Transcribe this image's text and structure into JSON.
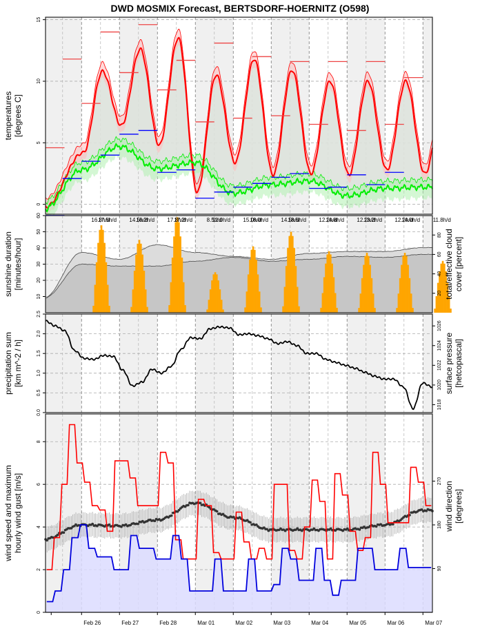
{
  "title": "DWD MOSMIX Forecast, BERTSDORF-HOERNITZ (O598)",
  "x_axis": {
    "day_labels": [
      "Feb 26",
      "Feb 27",
      "Feb 28",
      "Mar 01",
      "Mar 02",
      "Mar 03",
      "Mar 04",
      "Mar 05",
      "Mar 06",
      "Mar 07"
    ],
    "range_days": [
      -0.95,
      9.25
    ]
  },
  "colors": {
    "temp_max": "#ff0000",
    "temp_dew": "#00ee00",
    "daily_min_bar": "#0000ff",
    "sunshine": "#ffa500",
    "cloud": "#555555",
    "pressure": "#000000",
    "gust": "#ff0000",
    "wind_speed": "#0000dd",
    "wind_fill": "#dcdcff",
    "shade": "#f0f0f0"
  },
  "chart_data": [
    {
      "type": "line",
      "panel": "temperature",
      "ylabel": "temperatures\n[degrees C]",
      "ylabel_lines": [
        "temperatures",
        "[degrees C]"
      ],
      "ylim": [
        -0.8,
        15.2
      ],
      "yticks": [
        0,
        5,
        10,
        15
      ],
      "grid": true,
      "series": [
        {
          "name": "temperature",
          "peaks": [
            10.8,
            12.6,
            13.5,
            10.5,
            11.8,
            10.9,
            10.0,
            10.0,
            10.0,
            8.5
          ],
          "troughs": [
            -0.2,
            4.2,
            6.4,
            4.8,
            1.0,
            3.4,
            2.4,
            2.5,
            2.4,
            2.8,
            2.5
          ]
        },
        {
          "name": "dew point",
          "values_at_days": [
            -0.4,
            2.8,
            4.7,
            2.9,
            3.4,
            0.9,
            1.6,
            1.9,
            0.7,
            1.3,
            1.4
          ]
        }
      ],
      "daily_max_bars": [
        4.6,
        11.8,
        8.2,
        14.0,
        10.7,
        14.6,
        9.3,
        11.7,
        6.7,
        13.1,
        7.0,
        12.0,
        7.2,
        11.6,
        6.5,
        11.6,
        6.0,
        11.6,
        6.5,
        10.3
      ],
      "daily_min_bars": [
        -0.9,
        2.1,
        3.5,
        4.0,
        5.7,
        6.0,
        2.6,
        2.8,
        0.5,
        1.0,
        1.4,
        1.7,
        2.2,
        2.5,
        1.3,
        1.4,
        2.4,
        1.6,
        2.6
      ]
    },
    {
      "type": "bar",
      "panel": "sunshine",
      "ylabel_lines": [
        "sunshine duration",
        "[minutes/hour]"
      ],
      "y2label_lines": [
        "total/effective cloud",
        "cover [percent]"
      ],
      "ylim": [
        0,
        60
      ],
      "yticks": [
        10,
        20,
        30,
        40,
        50,
        60
      ],
      "y2ticks": [
        20,
        40,
        60,
        80
      ],
      "daily_sun_peak_min_per_hour": [
        54,
        45,
        59,
        25,
        41,
        50,
        38,
        37,
        37,
        32
      ],
      "daily_sunshine_labels": [
        "16.8h/d",
        "14.5h/d",
        "17.8h/d",
        "8.5h/d",
        "15.0h/d",
        "14.5h/d",
        "12.2h/d",
        "12.2h/d",
        "12.2h/d",
        "11.8h/d"
      ],
      "overlap_labels": [
        "17.5h/d",
        "16.2h/d",
        "17.2h/d",
        "12.0h/d",
        "18.0h/d",
        "18.5h/d",
        "14.8h/d",
        "13.2h/d",
        "14.0h/d"
      ],
      "cloud_total_percent_at_days": [
        15,
        62,
        55,
        70,
        62,
        58,
        55,
        61,
        63,
        63,
        67
      ],
      "cloud_effective_percent_at_days": [
        15,
        50,
        48,
        48,
        53,
        57,
        53,
        55,
        58,
        57,
        60
      ],
      "grid": true
    },
    {
      "type": "line",
      "panel": "pressure",
      "ylabel_lines": [
        "precipitation sum",
        "[km m^-2 / h]"
      ],
      "y2label_lines": [
        "surface pressure",
        "[hetcopascal]"
      ],
      "ylim": [
        0,
        2.5
      ],
      "yticks": [
        0.0,
        0.5,
        1.0,
        1.5,
        2.0,
        2.5
      ],
      "y2lim": [
        1017.2,
        1027.2
      ],
      "y2ticks": [
        1018,
        1020,
        1022,
        1024,
        1026
      ],
      "pressure_hpa": [
        1026.5,
        1026,
        1025.5,
        1023.5,
        1022.7,
        1022.6,
        1023.0,
        1022.9,
        1021.5,
        1019.9,
        1020.3,
        1021.6,
        1021.2,
        1021.9,
        1023.6,
        1024.8,
        1024.7,
        1025.7,
        1025.9,
        1025.8,
        1025.1,
        1025.2,
        1025.0,
        1024.7,
        1024.2,
        1024.4,
        1024.0,
        1023.2,
        1023.2,
        1022.6,
        1022.3,
        1022.0,
        1021.7,
        1021.3,
        1020.9,
        1020.6,
        1020.6,
        1019.8,
        1017.6,
        1020.2,
        1019.8
      ],
      "grid": true
    },
    {
      "type": "line",
      "panel": "wind",
      "ylabel_lines": [
        "wind speed and maximum",
        "hourly wind gust [m/s]"
      ],
      "y2label_lines": [
        "wind direction",
        "[degrees]"
      ],
      "ylim": [
        0,
        9.3
      ],
      "yticks": [
        0,
        2,
        4,
        6,
        8
      ],
      "y2ticks": [
        90,
        180,
        270
      ],
      "series": [
        {
          "name": "max hourly gust",
          "values": [
            2.0,
            3.5,
            6.0,
            8.8,
            7.0,
            6.1,
            5.0,
            4.8,
            3.8,
            7.1,
            7.1,
            6.3,
            5.0,
            5.0,
            5.0,
            7.5,
            7.0,
            3.4,
            2.5,
            2.5,
            5.3,
            5.0,
            2.8,
            2.5,
            2.5,
            4.7,
            3.3,
            2.5,
            3.0,
            2.5,
            6.0,
            6.0,
            2.9,
            2.5,
            4.0,
            6.2,
            5.2,
            2.5,
            6.5,
            5.5,
            3.8,
            2.9,
            3.5,
            7.5,
            6.0,
            4.2,
            4.2,
            4.2,
            6.8,
            6.1,
            5.0
          ]
        },
        {
          "name": "wind speed",
          "values": [
            0.5,
            1.0,
            2.0,
            3.5,
            4.1,
            3.0,
            2.6,
            2.6,
            2.0,
            2.0,
            3.6,
            3.0,
            3.0,
            2.5,
            2.5,
            3.6,
            2.5,
            1.0,
            1.0,
            1.0,
            2.5,
            1.0,
            1.0,
            1.0,
            2.5,
            1.0,
            1.0,
            1.3,
            3.0,
            2.5,
            1.5,
            1.5,
            3.0,
            1.5,
            0.8,
            1.5,
            1.5,
            3.0,
            3.0,
            2.0,
            2.0,
            2.0,
            3.0,
            2.1,
            2.1,
            2.1
          ]
        }
      ],
      "wind_direction_deg_at_days": [
        150,
        180,
        178,
        190,
        225,
        195,
        170,
        170,
        170,
        180,
        210
      ],
      "grid": true
    }
  ]
}
